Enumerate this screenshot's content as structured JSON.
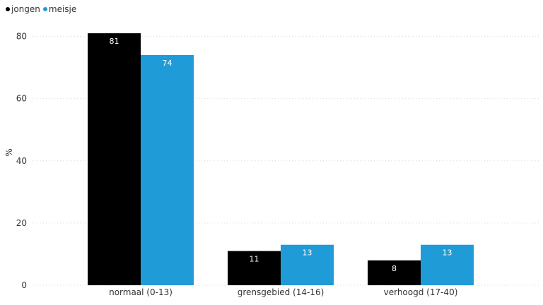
{
  "chart_data": {
    "type": "bar",
    "categories": [
      "normaal (0-13)",
      "grensgebied (14-16)",
      "verhoogd (17-40)"
    ],
    "series": [
      {
        "name": "jongen",
        "values": [
          81,
          11,
          8
        ],
        "labels": [
          "81",
          "11",
          "8"
        ],
        "color": "#000000"
      },
      {
        "name": "meisje",
        "values": [
          74,
          13,
          13
        ],
        "labels": [
          "74",
          "13",
          "13"
        ],
        "color": "#1f9bd7"
      }
    ],
    "ylabel": "%",
    "ylim": [
      0,
      85
    ],
    "yticks": [
      "0",
      "20",
      "40",
      "60",
      "80"
    ],
    "grid": true,
    "legend_position": "top-left"
  }
}
